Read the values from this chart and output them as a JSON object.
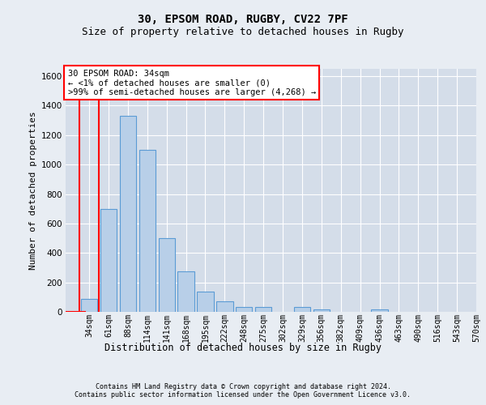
{
  "title_line1": "30, EPSOM ROAD, RUGBY, CV22 7PF",
  "title_line2": "Size of property relative to detached houses in Rugby",
  "xlabel": "Distribution of detached houses by size in Rugby",
  "ylabel": "Number of detached properties",
  "footer_line1": "Contains HM Land Registry data © Crown copyright and database right 2024.",
  "footer_line2": "Contains public sector information licensed under the Open Government Licence v3.0.",
  "annotation_line1": "30 EPSOM ROAD: 34sqm",
  "annotation_line2": "← <1% of detached houses are smaller (0)",
  "annotation_line3": ">99% of semi-detached houses are larger (4,268) →",
  "bar_labels": [
    "34sqm",
    "61sqm",
    "88sqm",
    "114sqm",
    "141sqm",
    "168sqm",
    "195sqm",
    "222sqm",
    "248sqm",
    "275sqm",
    "302sqm",
    "329sqm",
    "356sqm",
    "382sqm",
    "409sqm",
    "436sqm",
    "463sqm",
    "490sqm",
    "516sqm",
    "543sqm",
    "570sqm"
  ],
  "bar_values": [
    90,
    700,
    1330,
    1100,
    500,
    275,
    135,
    70,
    35,
    35,
    0,
    35,
    15,
    0,
    0,
    15,
    0,
    0,
    0,
    0,
    0
  ],
  "bar_color": "#b8cfe8",
  "bar_edge_color": "#5b9bd5",
  "highlight_color": "#ff0000",
  "ylim_max": 1650,
  "yticks": [
    0,
    200,
    400,
    600,
    800,
    1000,
    1200,
    1400,
    1600
  ],
  "fig_bg_color": "#e8edf3",
  "plot_bg_color": "#d4dde9",
  "grid_color": "#ffffff",
  "title1_fontsize": 10,
  "title2_fontsize": 9,
  "ylabel_fontsize": 8,
  "xlabel_fontsize": 8.5,
  "tick_fontsize": 7,
  "footer_fontsize": 6,
  "ann_fontsize": 7.5
}
